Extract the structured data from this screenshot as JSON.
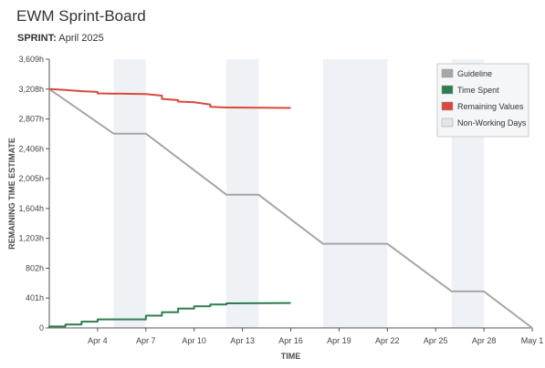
{
  "header": {
    "title": "EWM Sprint-Board",
    "sprint_label": "SPRINT:",
    "sprint_value": "April 2025"
  },
  "colors": {
    "guideline": "#a6a6a6",
    "time_spent": "#2e7d4f",
    "remaining": "#d9483b",
    "non_working": "#eef1f5",
    "axis": "#555555"
  },
  "chart_data": {
    "type": "line",
    "xlabel": "TIME",
    "ylabel": "REMAINING TIME ESTIMATE",
    "x_range": [
      "2025-04-01",
      "2025-05-01"
    ],
    "ylim": [
      0,
      3609
    ],
    "y_ticks": [
      {
        "value": 0,
        "label": "0"
      },
      {
        "value": 401,
        "label": "401h"
      },
      {
        "value": 802,
        "label": "802h"
      },
      {
        "value": 1203,
        "label": "1,203h"
      },
      {
        "value": 1604,
        "label": "1,604h"
      },
      {
        "value": 2005,
        "label": "2,005h"
      },
      {
        "value": 2406,
        "label": "2,406h"
      },
      {
        "value": 2807,
        "label": "2,807h"
      },
      {
        "value": 3208,
        "label": "3,208h"
      },
      {
        "value": 3609,
        "label": "3,609h"
      }
    ],
    "x_ticks": [
      {
        "date": "2025-04-04",
        "label": "Apr 4"
      },
      {
        "date": "2025-04-07",
        "label": "Apr 7"
      },
      {
        "date": "2025-04-10",
        "label": "Apr 10"
      },
      {
        "date": "2025-04-13",
        "label": "Apr 13"
      },
      {
        "date": "2025-04-16",
        "label": "Apr 16"
      },
      {
        "date": "2025-04-19",
        "label": "Apr 19"
      },
      {
        "date": "2025-04-22",
        "label": "Apr 22"
      },
      {
        "date": "2025-04-25",
        "label": "Apr 25"
      },
      {
        "date": "2025-04-28",
        "label": "Apr 28"
      },
      {
        "date": "2025-05-01",
        "label": "May 1"
      }
    ],
    "non_working_days": [
      [
        "2025-04-05",
        "2025-04-07"
      ],
      [
        "2025-04-12",
        "2025-04-14"
      ],
      [
        "2025-04-18",
        "2025-04-22"
      ],
      [
        "2025-04-26",
        "2025-04-28"
      ]
    ],
    "legend": {
      "placement": "top-right",
      "entries": [
        "Guideline",
        "Time Spent",
        "Remaining Values",
        "Non-Working Days"
      ]
    },
    "series": [
      {
        "name": "Guideline",
        "points": [
          [
            "2025-04-01",
            3208
          ],
          [
            "2025-04-05",
            2610
          ],
          [
            "2025-04-07",
            2610
          ],
          [
            "2025-04-12",
            1790
          ],
          [
            "2025-04-14",
            1790
          ],
          [
            "2025-04-18",
            1130
          ],
          [
            "2025-04-22",
            1130
          ],
          [
            "2025-04-26",
            490
          ],
          [
            "2025-04-28",
            490
          ],
          [
            "2025-05-01",
            0
          ]
        ]
      },
      {
        "name": "Time Spent",
        "points": [
          [
            "2025-04-01",
            0
          ],
          [
            "2025-04-01",
            20
          ],
          [
            "2025-04-02",
            20
          ],
          [
            "2025-04-02",
            45
          ],
          [
            "2025-04-03",
            45
          ],
          [
            "2025-04-03",
            85
          ],
          [
            "2025-04-04",
            85
          ],
          [
            "2025-04-04",
            115
          ],
          [
            "2025-04-07",
            115
          ],
          [
            "2025-04-07",
            165
          ],
          [
            "2025-04-08",
            165
          ],
          [
            "2025-04-08",
            210
          ],
          [
            "2025-04-09",
            210
          ],
          [
            "2025-04-09",
            260
          ],
          [
            "2025-04-10",
            260
          ],
          [
            "2025-04-10",
            290
          ],
          [
            "2025-04-11",
            290
          ],
          [
            "2025-04-11",
            315
          ],
          [
            "2025-04-12",
            315
          ],
          [
            "2025-04-12",
            330
          ],
          [
            "2025-04-16",
            335
          ]
        ]
      },
      {
        "name": "Remaining Values",
        "points": [
          [
            "2025-04-01",
            3208
          ],
          [
            "2025-04-02",
            3195
          ],
          [
            "2025-04-03",
            3180
          ],
          [
            "2025-04-04",
            3170
          ],
          [
            "2025-04-04",
            3150
          ],
          [
            "2025-04-07",
            3140
          ],
          [
            "2025-04-08",
            3120
          ],
          [
            "2025-04-08",
            3075
          ],
          [
            "2025-04-09",
            3060
          ],
          [
            "2025-04-09",
            3040
          ],
          [
            "2025-04-10",
            3030
          ],
          [
            "2025-04-11",
            3000
          ],
          [
            "2025-04-11",
            2970
          ],
          [
            "2025-04-12",
            2960
          ],
          [
            "2025-04-16",
            2955
          ]
        ]
      }
    ]
  }
}
